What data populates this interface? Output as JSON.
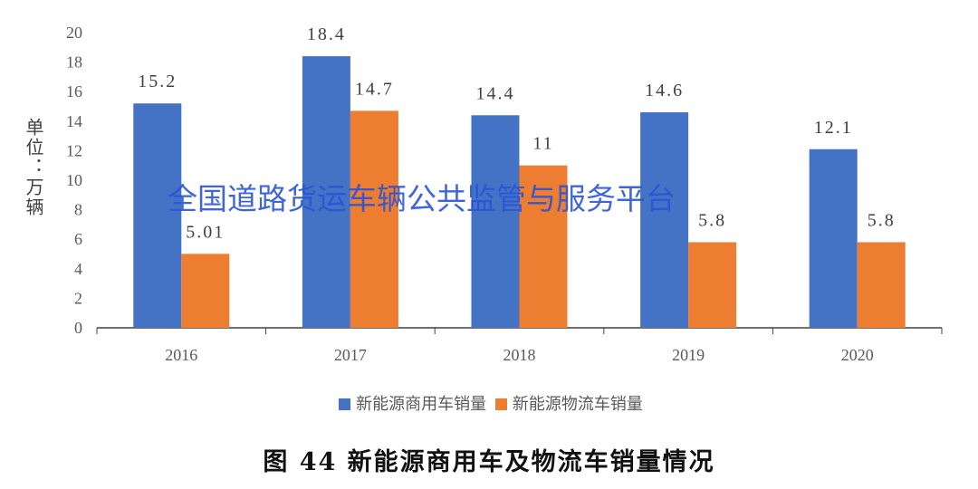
{
  "chart_data": {
    "type": "bar",
    "categories": [
      "2016",
      "2017",
      "2018",
      "2019",
      "2020"
    ],
    "series": [
      {
        "name": "新能源商用车销量",
        "values": [
          15.2,
          18.4,
          14.4,
          14.6,
          12.1
        ],
        "labels": [
          "15.2",
          "18.4",
          "14.4",
          "14.6",
          "12.1"
        ],
        "color": "#4472C4"
      },
      {
        "name": "新能源物流车销量",
        "values": [
          5.01,
          14.7,
          11,
          5.8,
          5.8
        ],
        "labels": [
          "5.01",
          "14.7",
          "11",
          "5.8",
          "5.8"
        ],
        "color": "#ED7D31"
      }
    ],
    "ylabel": "单位：万辆",
    "ylim": [
      0,
      20
    ],
    "yticks": [
      "0",
      "2",
      "4",
      "6",
      "8",
      "10",
      "12",
      "14",
      "16",
      "18",
      "20"
    ],
    "grid": false,
    "legend": "bottom",
    "title": "图 44  新能源商用车及物流车销量情况"
  },
  "watermark": "全国道路货运车辆公共监管与服务平台"
}
